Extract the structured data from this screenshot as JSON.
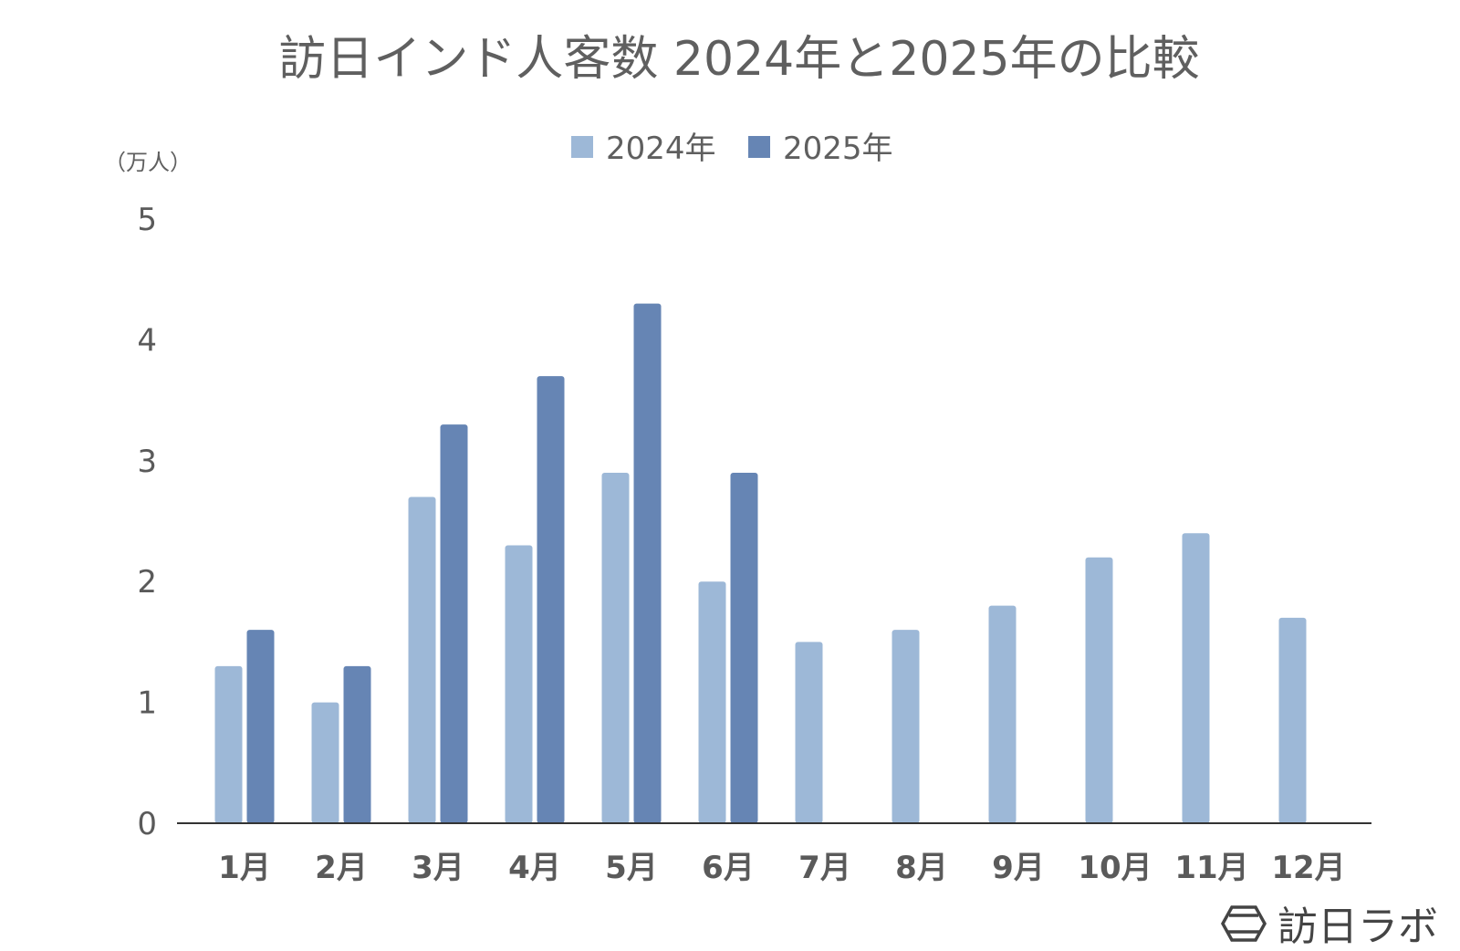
{
  "chart_data": {
    "type": "bar",
    "title": "訪日インド人客数 2024年と2025年の比較",
    "unit_label": "（万人）",
    "categories": [
      "1月",
      "2月",
      "3月",
      "4月",
      "5月",
      "6月",
      "7月",
      "8月",
      "9月",
      "10月",
      "11月",
      "12月"
    ],
    "series": [
      {
        "name": "2024年",
        "color": "#9db8d7",
        "values": [
          1.3,
          1.0,
          2.7,
          2.3,
          2.9,
          2.0,
          1.5,
          1.6,
          1.8,
          2.2,
          2.4,
          1.7
        ]
      },
      {
        "name": "2025年",
        "color": "#6685b4",
        "values": [
          1.6,
          1.3,
          3.3,
          3.7,
          4.3,
          2.9,
          null,
          null,
          null,
          null,
          null,
          null
        ]
      }
    ],
    "ylim": [
      0,
      5
    ],
    "yticks": [
      0,
      1,
      2,
      3,
      4,
      5
    ],
    "grid": false,
    "legend_position": "top-center"
  },
  "brand": {
    "name": "訪日ラボ",
    "logo_icon": "hexagon-logo-icon"
  }
}
